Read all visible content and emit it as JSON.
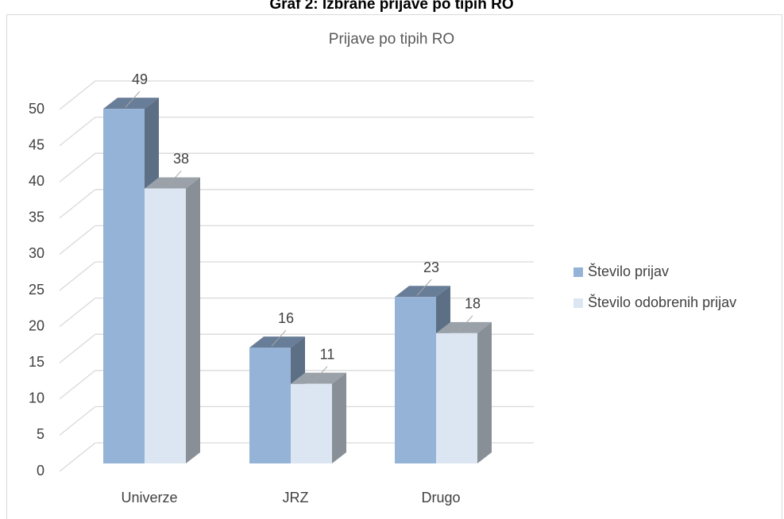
{
  "page_title": "Graf 2: Izbrane prijave po tipih RO",
  "chart_data": {
    "type": "bar3d",
    "title": "Prijave po tipih RO",
    "categories": [
      "Univerze",
      "JRZ",
      "Drugo"
    ],
    "series": [
      {
        "name": "Število prijav",
        "color": "#95b3d7",
        "values": [
          49,
          16,
          23
        ]
      },
      {
        "name": "Število odobrenih prijav",
        "color": "#dce6f2",
        "values": [
          38,
          11,
          18
        ]
      }
    ],
    "ylim": [
      0,
      50
    ],
    "yticks": [
      0,
      5,
      10,
      15,
      20,
      25,
      30,
      35,
      40,
      45,
      50
    ],
    "grid": true,
    "legend": "right",
    "data_labels": true
  }
}
